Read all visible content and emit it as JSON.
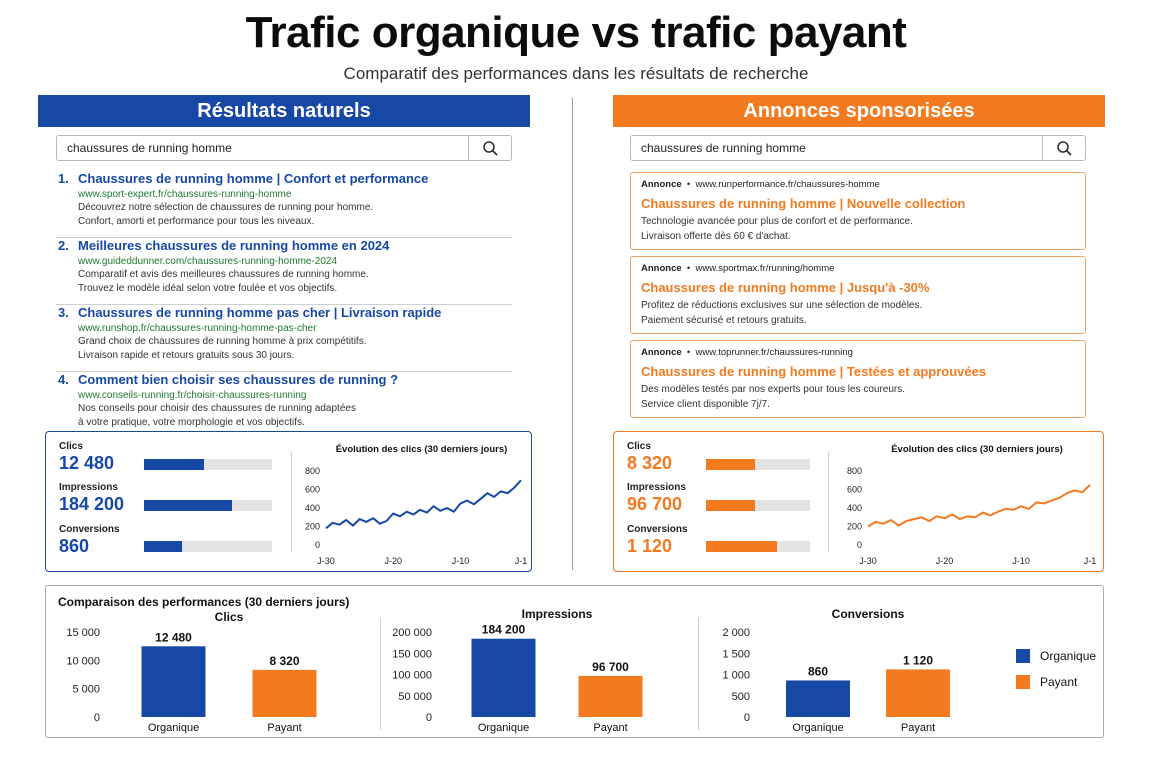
{
  "header": {
    "title": "Trafic organique vs trafic payant",
    "subtitle": "Comparatif des performances dans les résultats de recherche"
  },
  "colors": {
    "organic": "#1748a6",
    "paid": "#f47a20",
    "url_green": "#1f7a2e"
  },
  "icons": {
    "search": "magnifier-icon"
  },
  "organic": {
    "banner": "Résultats naturels",
    "query": "chaussures de running homme",
    "results": [
      {
        "num": "1.",
        "title": "Chaussures de running homme | Confort et performance",
        "url": "www.sport-expert.fr/chaussures-running-homme",
        "desc1": "Découvrez notre sélection de chaussures de running pour homme.",
        "desc2": "Confort, amorti et performance pour tous les niveaux."
      },
      {
        "num": "2.",
        "title": "Meilleures chaussures de running homme en 2024",
        "url": "www.guideddunner.com/chaussures-running-homme-2024",
        "desc1": "Comparatif et avis des meilleures chaussures de running homme.",
        "desc2": "Trouvez le modèle idéal selon votre foulée et vos objectifs."
      },
      {
        "num": "3.",
        "title": "Chaussures de running homme pas cher | Livraison rapide",
        "url": "www.runshop.fr/chaussures-running-homme-pas-cher",
        "desc1": "Grand choix de chaussures de running homme à prix compétitifs.",
        "desc2": "Livraison rapide et retours gratuits sous 30 jours."
      },
      {
        "num": "4.",
        "title": "Comment bien choisir ses chaussures de running ?",
        "url": "www.conseils-running.fr/choisir-chaussures-running",
        "desc1": "Nos conseils pour choisir des chaussures de running adaptées",
        "desc2": "à votre pratique, votre morphologie et vos objectifs."
      }
    ],
    "kpis": [
      {
        "label": "Clics",
        "value": "12 480",
        "fill": 0.47
      },
      {
        "label": "Impressions",
        "value": "184 200",
        "fill": 0.69
      },
      {
        "label": "Conversions",
        "value": "860",
        "fill": 0.3
      }
    ]
  },
  "paid": {
    "banner": "Annonces sponsorisées",
    "query": "chaussures de running homme",
    "ads": [
      {
        "tag": "Annonce",
        "url": "www.runperformance.fr/chaussures-homme",
        "title": "Chaussures de running homme | Nouvelle collection",
        "desc1": "Technologie avancée pour plus de confort et de performance.",
        "desc2": "Livraison offerte dès 60 € d'achat."
      },
      {
        "tag": "Annonce",
        "url": "www.sportmax.fr/running/homme",
        "title": "Chaussures de running homme | Jusqu'à -30%",
        "desc1": "Profitez de réductions exclusives sur une sélection de modèles.",
        "desc2": "Paiement sécurisé et retours gratuits."
      },
      {
        "tag": "Annonce",
        "url": "www.toprunner.fr/chaussures-running",
        "title": "Chaussures de running homme | Testées et approuvées",
        "desc1": "Des modèles testés par nos experts pour tous les coureurs.",
        "desc2": "Service client disponible 7j/7."
      }
    ],
    "kpis": [
      {
        "label": "Clics",
        "value": "8 320",
        "fill": 0.47
      },
      {
        "label": "Impressions",
        "value": "96 700",
        "fill": 0.47
      },
      {
        "label": "Conversions",
        "value": "1 120",
        "fill": 0.68
      }
    ]
  },
  "chart_data": [
    {
      "type": "line",
      "title": "Évolution des clics (30 derniers jours)",
      "x_ticks": [
        "J-30",
        "J-20",
        "J-10",
        "J-1"
      ],
      "ylim": [
        0,
        800
      ],
      "y_ticks": [
        0,
        200,
        400,
        600,
        800
      ],
      "series": [
        {
          "values": [
            180,
            240,
            220,
            270,
            210,
            280,
            250,
            290,
            230,
            260,
            340,
            310,
            360,
            330,
            380,
            350,
            420,
            370,
            400,
            360,
            450,
            480,
            440,
            500,
            560,
            520,
            580,
            560,
            620,
            700
          ]
        }
      ]
    },
    {
      "type": "line",
      "title": "Évolution des clics (30 derniers jours)",
      "x_ticks": [
        "J-30",
        "J-20",
        "J-10",
        "J-1"
      ],
      "ylim": [
        0,
        800
      ],
      "y_ticks": [
        0,
        200,
        400,
        600,
        800
      ],
      "series": [
        {
          "values": [
            200,
            250,
            230,
            270,
            210,
            260,
            280,
            300,
            260,
            310,
            290,
            330,
            280,
            310,
            300,
            350,
            320,
            360,
            390,
            380,
            420,
            390,
            460,
            450,
            480,
            510,
            560,
            590,
            570,
            650
          ]
        }
      ]
    },
    {
      "type": "bar",
      "panel_title": "Comparaison des performances (30 derniers jours)",
      "title": "Clics",
      "categories": [
        "Organique",
        "Payant"
      ],
      "values": [
        12480,
        8320
      ],
      "labels": [
        "12 480",
        "8 320"
      ],
      "ylim": [
        0,
        15000
      ],
      "y_ticks": [
        "0",
        "5 000",
        "10 000",
        "15 000"
      ]
    },
    {
      "type": "bar",
      "title": "Impressions",
      "categories": [
        "Organique",
        "Payant"
      ],
      "values": [
        184200,
        96700
      ],
      "labels": [
        "184 200",
        "96 700"
      ],
      "ylim": [
        0,
        200000
      ],
      "y_ticks": [
        "0",
        "50 000",
        "100 000",
        "150 000",
        "200 000"
      ]
    },
    {
      "type": "bar",
      "title": "Conversions",
      "categories": [
        "Organique",
        "Payant"
      ],
      "values": [
        860,
        1120
      ],
      "labels": [
        "860",
        "1 120"
      ],
      "ylim": [
        0,
        2000
      ],
      "y_ticks": [
        "0",
        "500",
        "1 000",
        "1 500",
        "2 000"
      ]
    }
  ],
  "legend": [
    "Organique",
    "Payant"
  ]
}
